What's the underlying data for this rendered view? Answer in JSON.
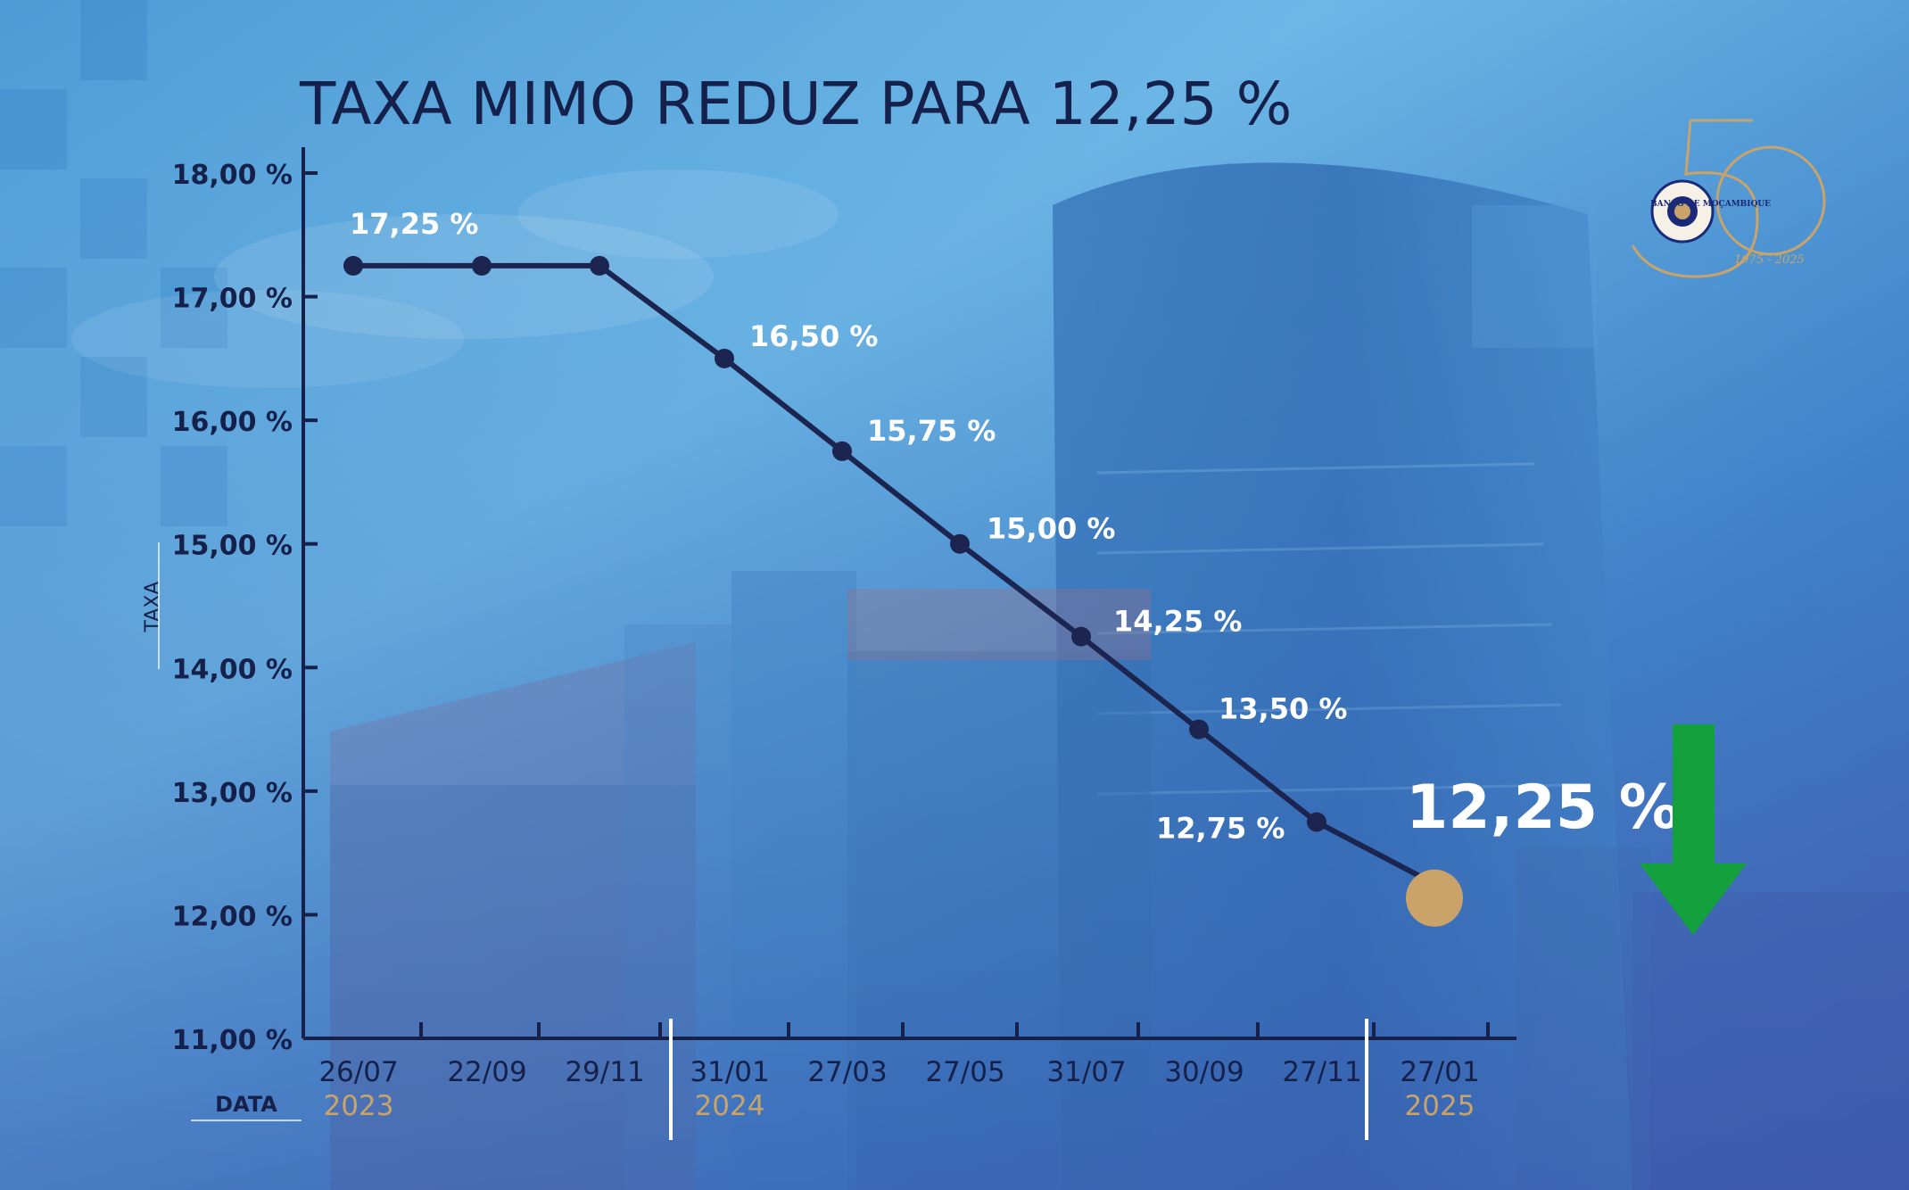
{
  "title": "TAXA MIMO REDUZ PARA 12,25 %",
  "logo": {
    "name": "Banco de Moçambique 50 anos",
    "seal_text": "BANCO DE MOÇAMBIQUE",
    "caption": "1975 - 2025"
  },
  "colors": {
    "line": "#1b2550",
    "highlight_point": "#c9a36a",
    "arrow": "#14a03c",
    "year_label": "#c9a36a",
    "axis": "#15214a",
    "value_label": "#ffffff"
  },
  "chart_data": {
    "type": "line",
    "title": "TAXA MIMO REDUZ PARA 12,25 %",
    "xlabel": "DATA",
    "ylabel": "TAXA",
    "ylim": [
      11,
      18
    ],
    "yticks": [
      "11,00 %",
      "12,00 %",
      "13,00 %",
      "14,00 %",
      "15,00 %",
      "16,00 %",
      "17,00 %",
      "18,00 %"
    ],
    "categories": [
      "26/07",
      "22/09",
      "29/11",
      "31/01",
      "27/03",
      "27/05",
      "31/07",
      "30/09",
      "27/11",
      "27/01"
    ],
    "years": [
      {
        "label": "2023",
        "at": "26/07"
      },
      {
        "label": "2024",
        "at": "31/01"
      },
      {
        "label": "2025",
        "at": "27/01"
      }
    ],
    "series": [
      {
        "values": [
          17.25,
          17.25,
          17.25,
          16.5,
          15.75,
          15.0,
          14.25,
          13.5,
          12.75,
          12.25
        ],
        "labels": [
          "17,25 %",
          "",
          "",
          "16,50 %",
          "15,75 %",
          "15,00 %",
          "14,25 %",
          "13,50 %",
          "12,75 %",
          "12,25 %"
        ]
      }
    ],
    "highlight": {
      "label": "12,25 %",
      "direction": "down"
    },
    "grid": false,
    "legend": "none"
  }
}
